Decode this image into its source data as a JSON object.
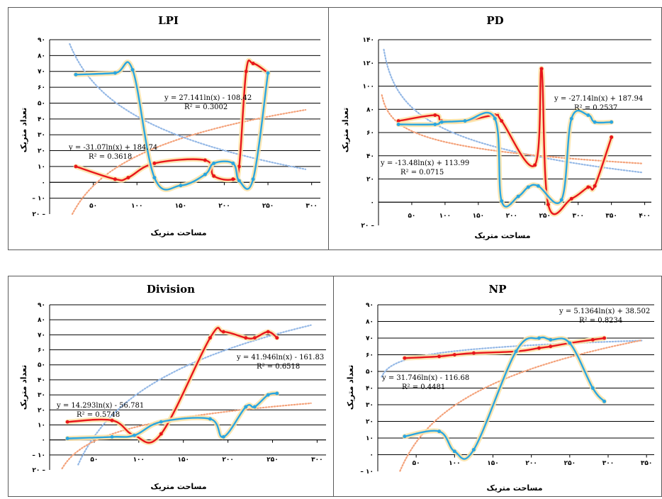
{
  "chart_data": [
    {
      "title": "LPI",
      "type": "line",
      "xlabel": "مساحت متریک",
      "ylabel": "تعداد متریک",
      "xticks": [
        "۵۰",
        "۱۰۰",
        "۱۵۰",
        "۲۰۰",
        "۲۵۰",
        "۳۰۰"
      ],
      "yticks": [
        "۲۰ –",
        "– ۱۰",
        "۰",
        "۱۰",
        "۲۰",
        "۳۰",
        "۴۰",
        "۵۰",
        "۶۰",
        "۷۰",
        "۸۰",
        "۹۰"
      ],
      "xlim": [
        0,
        310
      ],
      "ylim": [
        -20,
        90
      ],
      "grid": true,
      "series": [
        {
          "color": "#e8161b",
          "x": [
            30,
            75,
            90,
            120,
            178,
            188,
            210,
            217,
            225,
            233,
            250
          ],
          "y": [
            10,
            2,
            3,
            12,
            14,
            4,
            2,
            10,
            70,
            75,
            69
          ]
        },
        {
          "color": "#2aa6e0",
          "x": [
            30,
            75,
            95,
            120,
            150,
            178,
            188,
            210,
            217,
            233,
            250
          ],
          "y": [
            68,
            69,
            71,
            3,
            -2,
            5,
            12,
            12,
            1,
            2,
            69
          ]
        }
      ],
      "trendlines": [
        {
          "color": "#f4a27a",
          "a": 27.141,
          "b": -108.42,
          "equation": "y = 27.141ln(x) - 108.42",
          "r2": "R² = 0.3002"
        },
        {
          "color": "#94b8e6",
          "a": -31.07,
          "b": 184.74,
          "equation": "y = -31.07ln(x) + 184.74",
          "r2": "R² = 0.3618"
        }
      ]
    },
    {
      "title": "PD",
      "type": "line",
      "xlabel": "مساحت متریک",
      "ylabel": "تعداد متریک",
      "xticks": [
        "۵۰",
        "۱۰۰",
        "۱۵۰",
        "۲۰۰",
        "۲۵۰",
        "۳۰۰",
        "۳۵۰",
        "۴۰۰"
      ],
      "yticks": [
        "۲۰ –",
        "۰",
        "۲۰",
        "۴۰",
        "۶۰",
        "۸۰",
        "۱۰۰",
        "۱۲۰",
        "۱۴۰"
      ],
      "xlim": [
        0,
        410
      ],
      "ylim": [
        -20,
        140
      ],
      "grid": true,
      "series": [
        {
          "color": "#e8161b",
          "x": [
            30,
            85,
            95,
            130,
            175,
            185,
            235,
            245,
            255,
            290,
            315,
            325,
            350
          ],
          "y": [
            70,
            75,
            70,
            70,
            75,
            70,
            32,
            115,
            -2,
            3,
            13,
            14,
            56
          ]
        },
        {
          "color": "#2aa6e0",
          "x": [
            30,
            85,
            95,
            130,
            175,
            185,
            210,
            225,
            240,
            275,
            290,
            315,
            325,
            350
          ],
          "y": [
            67,
            67,
            69,
            70,
            72,
            1,
            5,
            13,
            14,
            2,
            72,
            75,
            69,
            69
          ]
        }
      ],
      "trendlines": [
        {
          "color": "#94b8e6",
          "a": -27.14,
          "b": 187.94,
          "equation": "y = -27.14ln(x) + 187.94",
          "r2": "R² = 0.2537"
        },
        {
          "color": "#f4a27a",
          "a": -13.48,
          "b": 113.99,
          "equation": "y = -13.48ln(x) + 113.99",
          "r2": "R² = 0.0715"
        }
      ]
    },
    {
      "title": "Division",
      "type": "line",
      "xlabel": "مساحت متریک",
      "ylabel": "تعداد متریک",
      "xticks": [
        "۵۰",
        "۱۰۰",
        "۱۵۰",
        "۲۰۰",
        "۲۵۰",
        "۳۰۰"
      ],
      "yticks": [
        "۲۰ –",
        "– ۱۰",
        "۰",
        "۱۰",
        "۲۰",
        "۳۰",
        "۴۰",
        "۵۰",
        "۶۰",
        "۷۰",
        "۸۰",
        "۹۰"
      ],
      "xlim": [
        0,
        310
      ],
      "ylim": [
        -20,
        90
      ],
      "grid": true,
      "series": [
        {
          "color": "#e8161b",
          "x": [
            20,
            70,
            95,
            125,
            180,
            195,
            220,
            230,
            245,
            255
          ],
          "y": [
            12,
            13,
            3,
            4,
            68,
            72,
            68,
            68,
            72,
            68
          ]
        },
        {
          "color": "#2aa6e0",
          "x": [
            20,
            70,
            95,
            125,
            180,
            195,
            220,
            230,
            245,
            255
          ],
          "y": [
            1,
            2,
            3,
            12,
            14,
            2,
            22,
            22,
            30,
            31
          ]
        }
      ],
      "trendlines": [
        {
          "color": "#94b8e6",
          "a": 41.946,
          "b": -161.83,
          "equation": "y = 41.946ln(x) - 161.83",
          "r2": "R² = 0.6518"
        },
        {
          "color": "#f4a27a",
          "a": 14.293,
          "b": -56.781,
          "equation": "y = 14.293ln(x) - 56.781",
          "r2": "R² = 0.5748"
        }
      ]
    },
    {
      "title": "NP",
      "type": "line",
      "xlabel": "مساحت متریک",
      "ylabel": "تعداد متریک",
      "xticks": [
        "۵۰",
        "۱۰۰",
        "۱۵۰",
        "۲۰۰",
        "۲۵۰",
        "۳۰۰",
        "۳۵۰"
      ],
      "yticks": [
        "– ۱۰",
        "۰",
        "۱۰",
        "۲۰",
        "۳۰",
        "۴۰",
        "۵۰",
        "۶۰",
        "۷۰",
        "۸۰",
        "۹۰"
      ],
      "xlim": [
        0,
        360
      ],
      "ylim": [
        -10,
        90
      ],
      "grid": true,
      "series": [
        {
          "color": "#e8161b",
          "x": [
            35,
            80,
            100,
            125,
            180,
            210,
            225,
            250,
            280,
            295
          ],
          "y": [
            58,
            59,
            60,
            61,
            62,
            64,
            65,
            67,
            69,
            70
          ]
        },
        {
          "color": "#2aa6e0",
          "x": [
            35,
            80,
            100,
            125,
            180,
            210,
            225,
            250,
            280,
            295
          ],
          "y": [
            11,
            14,
            2,
            3,
            62,
            70,
            69,
            67,
            40,
            32
          ]
        }
      ],
      "trendlines": [
        {
          "color": "#94b8e6",
          "a": 5.1364,
          "b": 38.502,
          "equation": "y = 5.1364ln(x) + 38.502",
          "r2": "R² = 0.8234"
        },
        {
          "color": "#f4a27a",
          "a": 31.746,
          "b": -116.68,
          "equation": "y = 31.746ln(x) - 116.68",
          "r2": "R² = 0.4481"
        }
      ]
    }
  ]
}
